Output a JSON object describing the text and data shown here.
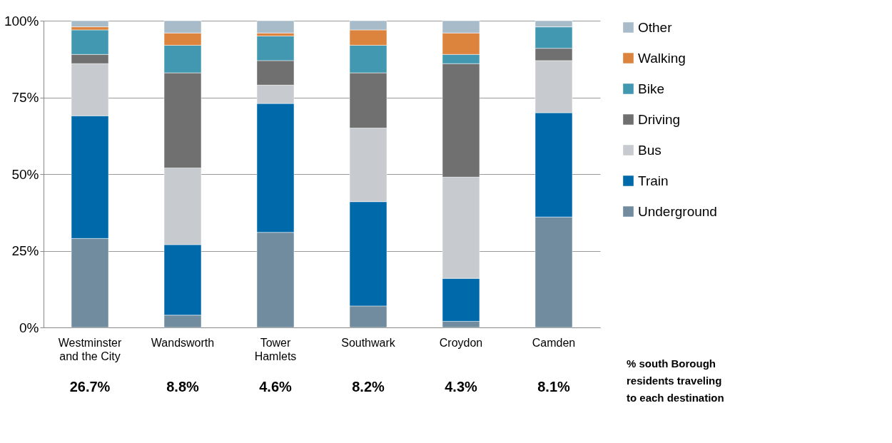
{
  "chart_data": {
    "type": "bar",
    "stacked": true,
    "categories": [
      "Westminster and the City",
      "Wandsworth",
      "Tower Hamlets",
      "Southwark",
      "Croydon",
      "Camden"
    ],
    "series": [
      {
        "name": "Underground",
        "color": "#718c9e",
        "values": [
          29,
          4,
          31,
          7,
          2,
          36
        ]
      },
      {
        "name": "Train",
        "color": "#0069aa",
        "values": [
          40,
          23,
          42,
          34,
          14,
          34
        ]
      },
      {
        "name": "Bus",
        "color": "#c7cbcf",
        "values": [
          17,
          25,
          6,
          24,
          33,
          17
        ]
      },
      {
        "name": "Driving",
        "color": "#707070",
        "values": [
          3,
          31,
          8,
          18,
          37,
          4
        ]
      },
      {
        "name": "Bike",
        "color": "#4298b0",
        "values": [
          8,
          9,
          8,
          9,
          3,
          7
        ]
      },
      {
        "name": "Walking",
        "color": "#dc843e",
        "values": [
          1,
          4,
          1,
          5,
          7,
          0
        ]
      },
      {
        "name": "Other",
        "color": "#a8bbc9",
        "values": [
          2,
          4,
          4,
          3,
          4,
          2
        ]
      }
    ],
    "ylim": [
      0,
      100
    ],
    "yticks": [
      {
        "value": 0,
        "label": "0%"
      },
      {
        "value": 25,
        "label": "25%"
      },
      {
        "value": 50,
        "label": "50%"
      },
      {
        "value": 75,
        "label": "75%"
      },
      {
        "value": 100,
        "label": "100%"
      }
    ],
    "grid": "y",
    "legend": "right",
    "annotations": [
      "26.7%",
      "8.8%",
      "4.6%",
      "8.2%",
      "4.3%",
      "8.1%",
      "% south Borough residents traveling to each destination"
    ]
  }
}
